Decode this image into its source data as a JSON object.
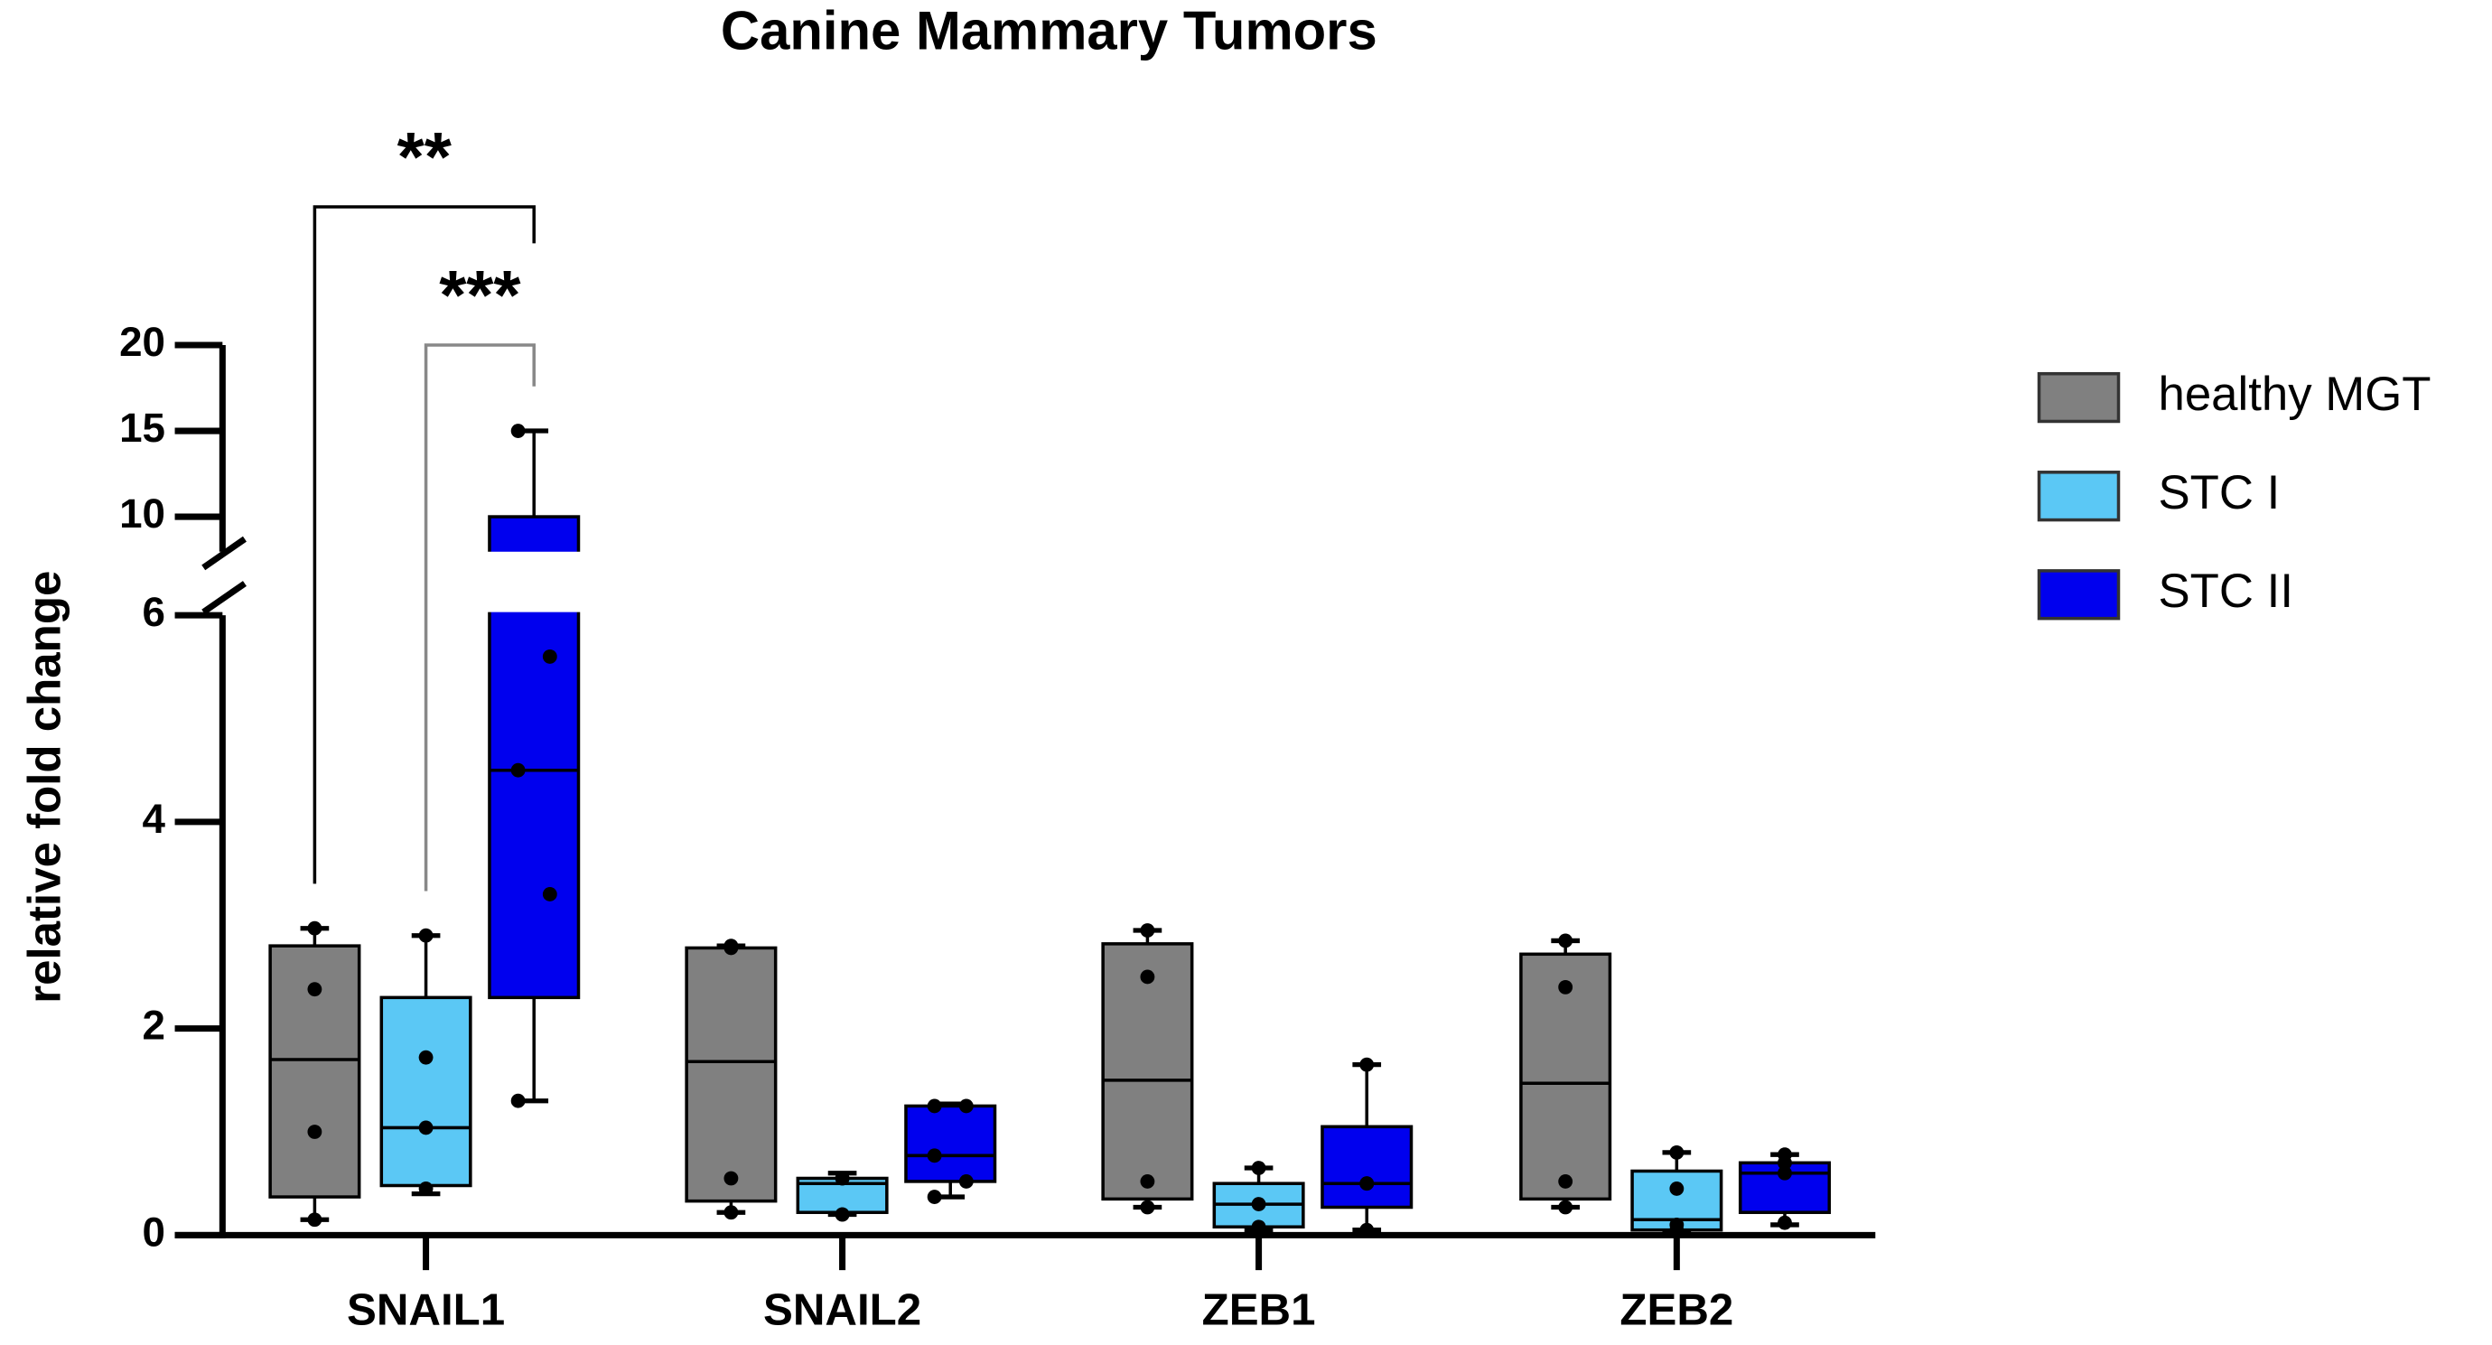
{
  "chart_data": {
    "type": "box",
    "title": "Canine Mammary Tumors",
    "y_label": "relative fold change",
    "categories": [
      "SNAIL1",
      "SNAIL2",
      "ZEB1",
      "ZEB2"
    ],
    "y_segments": [
      {
        "ylim": [
          0,
          6
        ],
        "yticks": [
          0,
          2,
          4,
          6
        ]
      },
      {
        "ylim": [
          10,
          20
        ],
        "yticks": [
          10,
          15,
          20
        ]
      }
    ],
    "legend": "right",
    "series": [
      {
        "name": "healthy MGT",
        "color": "#808080",
        "min": [
          0.15,
          0.22,
          0.27,
          0.27
        ],
        "q1": [
          0.37,
          0.33,
          0.35,
          0.35
        ],
        "median": [
          1.7,
          1.68,
          1.5,
          1.47
        ],
        "q3": [
          2.8,
          2.78,
          2.82,
          2.72
        ],
        "max": [
          2.97,
          2.8,
          2.95,
          2.85
        ],
        "points": [
          [
            2.97,
            2.38,
            1.0,
            0.15
          ],
          [
            2.8,
            2.78,
            0.55,
            0.22
          ],
          [
            2.95,
            2.5,
            0.52,
            0.27
          ],
          [
            2.85,
            2.4,
            0.52,
            0.27
          ]
        ]
      },
      {
        "name": "STC I",
        "color": "#5bc8f5",
        "min": [
          0.4,
          0.2,
          0.05,
          0.02
        ],
        "q1": [
          0.48,
          0.22,
          0.08,
          0.05
        ],
        "median": [
          1.04,
          0.5,
          0.3,
          0.15
        ],
        "q3": [
          2.3,
          0.55,
          0.5,
          0.62
        ],
        "max": [
          2.9,
          0.6,
          0.65,
          0.8
        ],
        "points": [
          [
            2.9,
            1.72,
            1.04,
            0.45
          ],
          [
            0.55,
            0.55,
            0.2,
            0.2
          ],
          [
            0.65,
            0.3,
            0.08,
            0.05
          ],
          [
            0.8,
            0.45,
            0.1,
            0.05
          ]
        ]
      },
      {
        "name": "STC II",
        "color": "#0000ee",
        "min": [
          1.3,
          0.37,
          0.05,
          0.1
        ],
        "q1": [
          2.3,
          0.52,
          0.27,
          0.22
        ],
        "median": [
          4.5,
          0.77,
          0.5,
          0.6
        ],
        "q3": [
          10,
          1.25,
          1.05,
          0.7
        ],
        "max": [
          15,
          1.27,
          1.65,
          0.78
        ],
        "points": [
          [
            15,
            5.6,
            4.5,
            3.3,
            1.3
          ],
          [
            1.25,
            1.25,
            0.77,
            0.52,
            0.37
          ],
          [
            1.65,
            0.5,
            0.5,
            0.05
          ],
          [
            0.78,
            0.7,
            0.6,
            0.12
          ]
        ]
      }
    ],
    "annotations": [
      {
        "text": "**",
        "category": 0,
        "from": 0,
        "to": 2
      },
      {
        "text": "***",
        "category": 0,
        "from": 1,
        "to": 2
      }
    ]
  }
}
